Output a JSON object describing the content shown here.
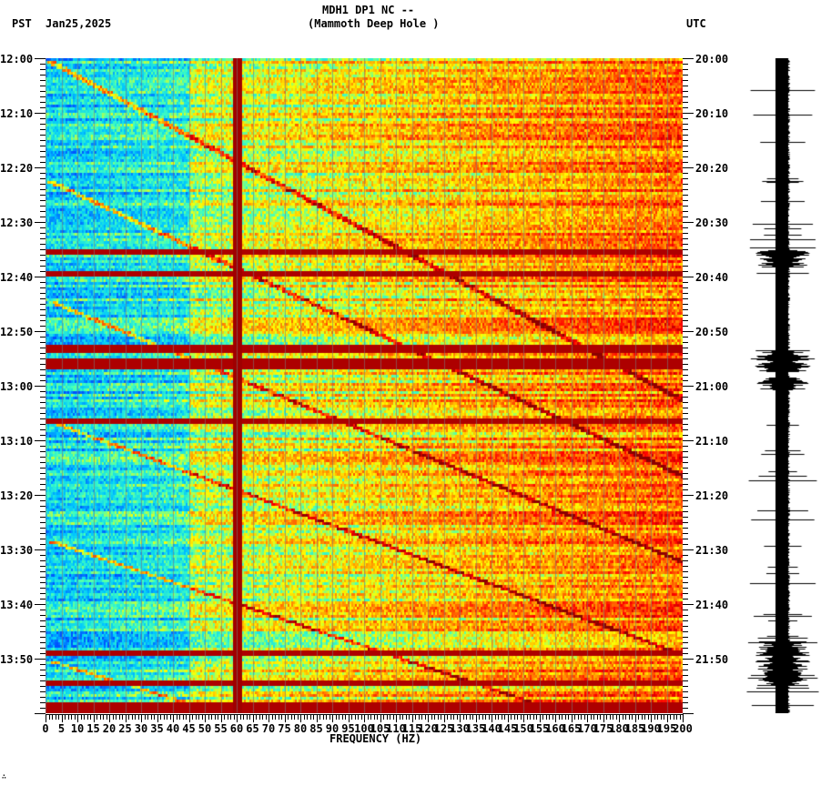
{
  "header": {
    "station": "MDH1 DP1 NC --",
    "location": "(Mammoth Deep Hole )",
    "left_tz": "PST",
    "date": "Jan25,2025",
    "right_tz": "UTC"
  },
  "footer": {
    "mark": "∴"
  },
  "chart_data": {
    "type": "heatmap",
    "title": "MDH1 DP1 NC -- (Mammoth Deep Hole )",
    "subtitle": "Jan25,2025",
    "xlabel": "FREQUENCY (HZ)",
    "ylabel_left": "PST",
    "ylabel_right": "UTC",
    "xlim": [
      0,
      200
    ],
    "x_ticks": [
      0,
      5,
      10,
      15,
      20,
      25,
      30,
      35,
      40,
      45,
      50,
      55,
      60,
      65,
      70,
      75,
      80,
      85,
      90,
      95,
      100,
      105,
      110,
      115,
      120,
      125,
      130,
      135,
      140,
      145,
      150,
      155,
      160,
      165,
      170,
      175,
      180,
      185,
      190,
      195,
      200
    ],
    "y_ticks_left": [
      "12:00",
      "12:10",
      "12:20",
      "12:30",
      "12:40",
      "12:50",
      "13:00",
      "13:10",
      "13:20",
      "13:30",
      "13:40",
      "13:50"
    ],
    "y_ticks_right": [
      "20:00",
      "20:10",
      "20:20",
      "20:30",
      "20:40",
      "20:50",
      "21:00",
      "21:10",
      "21:20",
      "21:30",
      "21:40",
      "21:50"
    ],
    "colormap": [
      "#0050ff",
      "#00c8ff",
      "#40ffc0",
      "#ffff00",
      "#ff8000",
      "#ff0000",
      "#8b0000"
    ],
    "features": {
      "persistent_line_hz": 60,
      "strong_broadband_bands_pst": [
        "12:35",
        "12:39",
        "12:55",
        "12:59",
        "13:06",
        "13:52",
        "13:58"
      ]
    },
    "side_panel": "seismogram trace"
  }
}
